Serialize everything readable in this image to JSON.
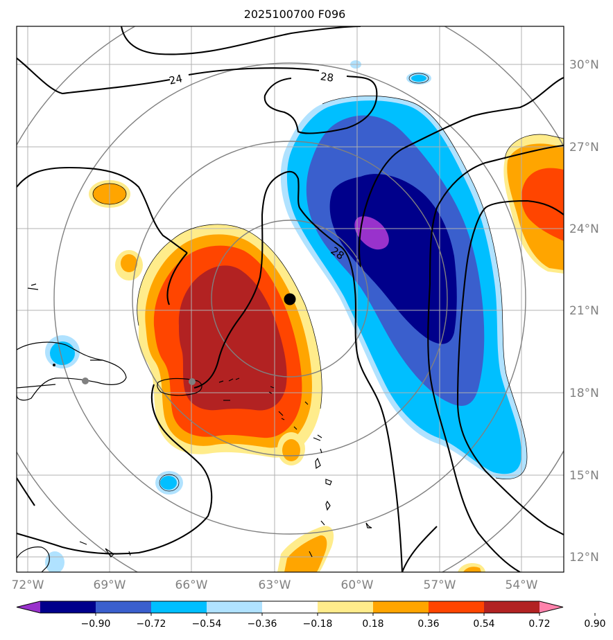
{
  "title": "2025100700 F096",
  "lon_ticks": [
    "72°W",
    "69°W",
    "66°W",
    "63°W",
    "60°W",
    "57°W",
    "54°W"
  ],
  "lat_ticks": [
    "30°N",
    "27°N",
    "24°N",
    "21°N",
    "18°N",
    "15°N",
    "12°N"
  ],
  "contour_labels": [
    "24",
    "28",
    "28"
  ],
  "colorbar": {
    "labels": [
      "−0.90",
      "−0.72",
      "−0.54",
      "−0.36",
      "−0.18",
      "0.18",
      "0.36",
      "0.54",
      "0.72",
      "0.90"
    ],
    "colors": [
      "#9932cc",
      "#00008b",
      "#3a5fcd",
      "#00bfff",
      "#b0e2ff",
      "#ffffff",
      "#ffec8b",
      "#ffa500",
      "#ff4500",
      "#b22222",
      "#ff82ab"
    ]
  },
  "markers": {
    "storm_center": "black-dot",
    "reference_points": "gray-dots"
  }
}
